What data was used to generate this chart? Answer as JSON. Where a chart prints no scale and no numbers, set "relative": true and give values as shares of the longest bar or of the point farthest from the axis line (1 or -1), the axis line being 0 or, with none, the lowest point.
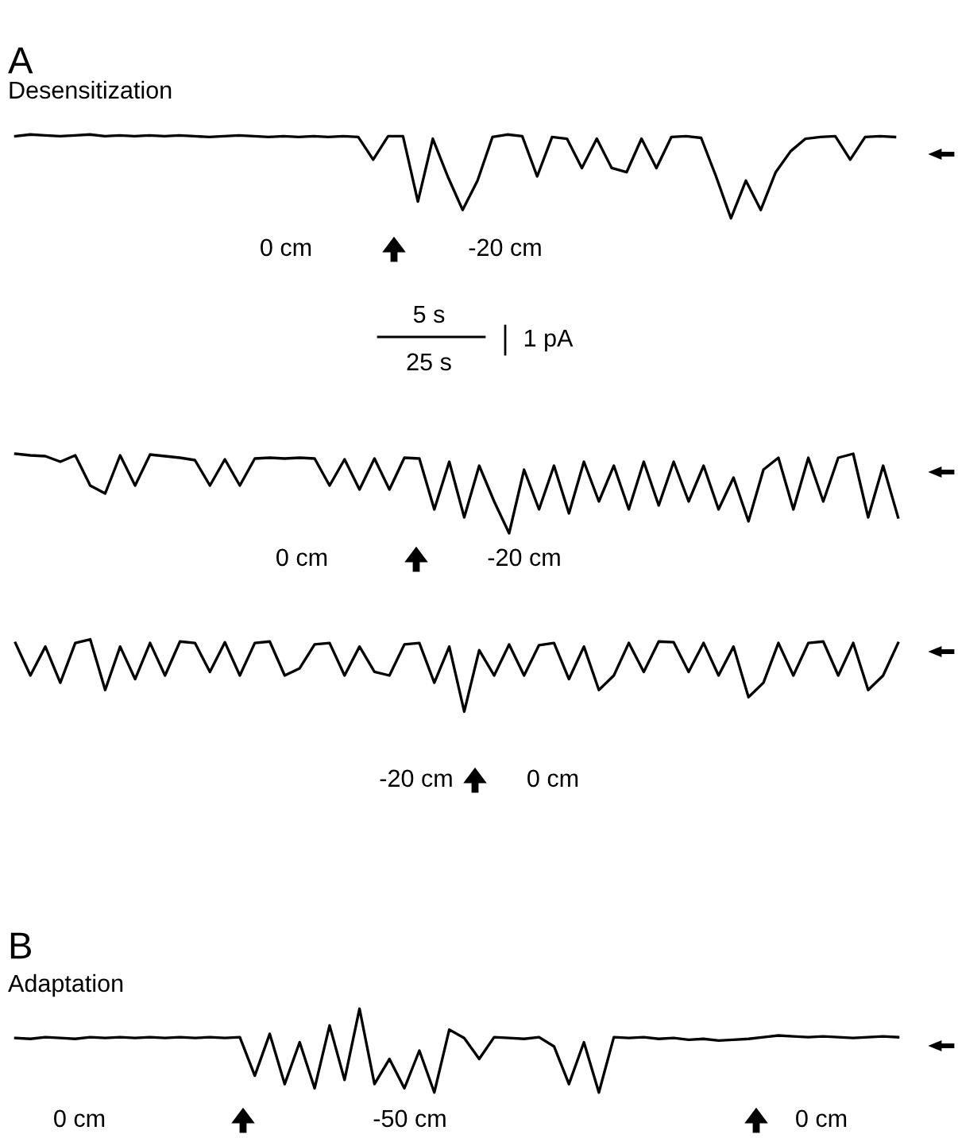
{
  "chart_data": [
    {
      "type": "line",
      "title": "A",
      "subtitle": "Desensitization",
      "relative": true,
      "color": "#000000",
      "annotations": [
        "0 cm",
        "-20 cm",
        "5 s",
        "25 s",
        "1 pA"
      ],
      "categories": [
        null,
        null,
        null,
        null,
        null,
        null,
        null,
        null,
        null,
        null,
        null,
        null,
        null,
        null,
        null,
        null,
        null,
        null,
        null,
        null,
        null,
        null,
        null,
        null,
        null,
        null,
        null,
        null,
        null,
        null,
        null,
        null,
        null,
        null,
        null,
        null,
        null,
        null,
        null,
        null,
        null,
        null,
        null,
        null,
        null,
        null,
        null,
        null,
        null,
        null,
        null,
        null,
        null,
        null,
        null,
        null,
        null,
        null,
        null,
        null
      ],
      "values": [
        0.98,
        1,
        0.99,
        0.98,
        0.99,
        1,
        0.98,
        0.99,
        0.98,
        0.99,
        0.98,
        0.99,
        0.98,
        0.97,
        0.98,
        0.99,
        0.98,
        0.97,
        0.98,
        0.97,
        0.98,
        0.97,
        0.98,
        0.97,
        0.7,
        0.98,
        0.98,
        0.2,
        0.95,
        0.5,
        0.1,
        0.45,
        0.97,
        1,
        0.98,
        0.5,
        0.97,
        0.95,
        0.6,
        0.95,
        0.6,
        0.55,
        0.95,
        0.6,
        0.97,
        0.98,
        0.96,
        0.5,
        0.0,
        0.45,
        0.1,
        0.55,
        0.8,
        0.95,
        0.97,
        0.98,
        0.7,
        0.97,
        0.98,
        0.97
      ]
    },
    {
      "type": "line",
      "relative": true,
      "color": "#000000",
      "annotations": [
        "0 cm",
        "-20 cm"
      ],
      "categories": [
        null,
        null,
        null,
        null,
        null,
        null,
        null,
        null,
        null,
        null,
        null,
        null,
        null,
        null,
        null,
        null,
        null,
        null,
        null,
        null,
        null,
        null,
        null,
        null,
        null,
        null,
        null,
        null,
        null,
        null,
        null,
        null,
        null,
        null,
        null,
        null,
        null,
        null,
        null,
        null,
        null,
        null,
        null,
        null,
        null,
        null,
        null,
        null,
        null,
        null,
        null,
        null,
        null,
        null,
        null,
        null,
        null,
        null,
        null,
        null
      ],
      "values": [
        1,
        0.98,
        0.97,
        0.9,
        0.98,
        0.6,
        0.5,
        0.98,
        0.6,
        0.99,
        0.97,
        0.95,
        0.92,
        0.6,
        0.93,
        0.6,
        0.94,
        0.95,
        0.94,
        0.95,
        0.94,
        0.6,
        0.93,
        0.55,
        0.94,
        0.55,
        0.95,
        0.94,
        0.3,
        0.9,
        0.2,
        0.85,
        0.4,
        0.0,
        0.8,
        0.3,
        0.85,
        0.25,
        0.9,
        0.4,
        0.85,
        0.3,
        0.9,
        0.35,
        0.9,
        0.4,
        0.85,
        0.3,
        0.7,
        0.15,
        0.8,
        0.95,
        0.3,
        0.95,
        0.4,
        0.95,
        1,
        0.2,
        0.85,
        0.2
      ]
    },
    {
      "type": "line",
      "relative": true,
      "color": "#000000",
      "annotations": [
        "-20 cm",
        "0 cm"
      ],
      "categories": [
        null,
        null,
        null,
        null,
        null,
        null,
        null,
        null,
        null,
        null,
        null,
        null,
        null,
        null,
        null,
        null,
        null,
        null,
        null,
        null,
        null,
        null,
        null,
        null,
        null,
        null,
        null,
        null,
        null,
        null,
        null,
        null,
        null,
        null,
        null,
        null,
        null,
        null,
        null,
        null,
        null,
        null,
        null,
        null,
        null,
        null,
        null,
        null,
        null,
        null,
        null,
        null,
        null,
        null,
        null,
        null,
        null,
        null,
        null,
        null
      ],
      "values": [
        0.95,
        0.5,
        0.9,
        0.4,
        0.95,
        1,
        0.3,
        0.9,
        0.45,
        0.95,
        0.5,
        0.97,
        0.95,
        0.55,
        0.96,
        0.5,
        0.95,
        0.97,
        0.5,
        0.6,
        0.93,
        0.95,
        0.5,
        0.9,
        0.55,
        0.5,
        0.93,
        0.95,
        0.4,
        0.9,
        0.0,
        0.85,
        0.5,
        0.93,
        0.5,
        0.92,
        0.95,
        0.45,
        0.9,
        0.3,
        0.5,
        0.95,
        0.55,
        0.97,
        0.96,
        0.55,
        0.95,
        0.5,
        0.9,
        0.2,
        0.4,
        0.95,
        0.5,
        0.95,
        0.97,
        0.5,
        0.95,
        0.3,
        0.5,
        0.95
      ]
    },
    {
      "type": "line",
      "title": "B",
      "subtitle": "Adaptation",
      "relative": true,
      "color": "#000000",
      "annotations": [
        "0 cm",
        "-50 cm",
        "0 cm"
      ],
      "categories": [
        null,
        null,
        null,
        null,
        null,
        null,
        null,
        null,
        null,
        null,
        null,
        null,
        null,
        null,
        null,
        null,
        null,
        null,
        null,
        null,
        null,
        null,
        null,
        null,
        null,
        null,
        null,
        null,
        null,
        null,
        null,
        null,
        null,
        null,
        null,
        null,
        null,
        null,
        null,
        null,
        null,
        null,
        null,
        null,
        null,
        null,
        null,
        null,
        null,
        null,
        null,
        null,
        null,
        null,
        null,
        null,
        null,
        null,
        null,
        null
      ],
      "values": [
        0.65,
        0.64,
        0.66,
        0.65,
        0.64,
        0.66,
        0.65,
        0.66,
        0.65,
        0.66,
        0.65,
        0.66,
        0.65,
        0.66,
        0.65,
        0.66,
        0.2,
        0.7,
        0.1,
        0.6,
        0.05,
        0.8,
        0.15,
        1,
        0.1,
        0.4,
        0.05,
        0.5,
        0.0,
        0.75,
        0.65,
        0.4,
        0.66,
        0.65,
        0.64,
        0.66,
        0.55,
        0.1,
        0.6,
        0.0,
        0.66,
        0.65,
        0.66,
        0.64,
        0.65,
        0.63,
        0.64,
        0.62,
        0.63,
        0.64,
        0.66,
        0.68,
        0.67,
        0.66,
        0.67,
        0.66,
        0.65,
        0.66,
        0.67,
        0.66
      ]
    }
  ]
}
